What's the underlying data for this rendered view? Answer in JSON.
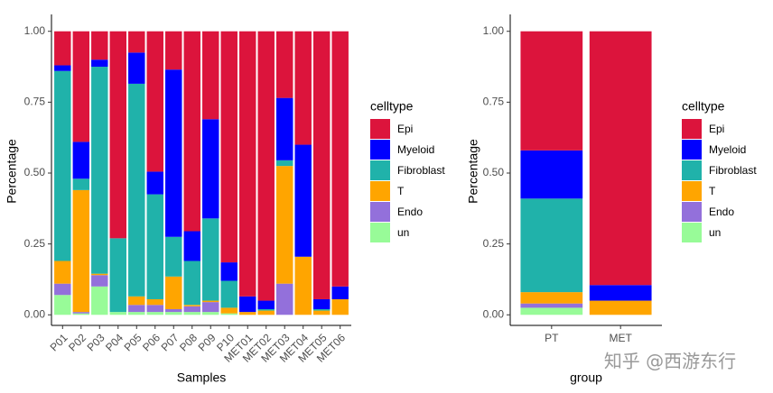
{
  "chart_data": [
    {
      "type": "stacked_bar",
      "xlabel": "Samples",
      "ylabel": "Percentage",
      "legend_title": "celltype",
      "categories": [
        "P01",
        "P02",
        "P03",
        "P04",
        "P05",
        "P06",
        "P07",
        "P08",
        "P09",
        "P10",
        "MET01",
        "MET02",
        "MET03",
        "MET04",
        "MET05",
        "MET06"
      ],
      "series": [
        {
          "name": "Epi",
          "color": "#DC143C",
          "values": [
            0.12,
            0.39,
            0.1,
            0.73,
            0.075,
            0.495,
            0.135,
            0.705,
            0.31,
            0.815,
            0.935,
            0.95,
            0.235,
            0.4,
            0.945,
            0.9
          ]
        },
        {
          "name": "Myeloid",
          "color": "#0000FF",
          "values": [
            0.02,
            0.13,
            0.025,
            0,
            0.11,
            0.08,
            0.59,
            0.105,
            0.35,
            0.065,
            0.055,
            0.03,
            0.22,
            0.395,
            0.035,
            0.045
          ]
        },
        {
          "name": "Fibroblast",
          "color": "#20B2AA",
          "values": [
            0.67,
            0.04,
            0.73,
            0.26,
            0.75,
            0.37,
            0.14,
            0.155,
            0.29,
            0.095,
            0,
            0.005,
            0.02,
            0,
            0.005,
            0
          ]
        },
        {
          "name": "T",
          "color": "#FFA500",
          "values": [
            0.08,
            0.43,
            0.005,
            0,
            0.03,
            0.02,
            0.115,
            0.005,
            0.005,
            0.02,
            0.01,
            0.015,
            0.415,
            0.205,
            0.015,
            0.055
          ]
        },
        {
          "name": "Endo",
          "color": "#9370DB",
          "values": [
            0.04,
            0.005,
            0.04,
            0,
            0.025,
            0.025,
            0.01,
            0.02,
            0.035,
            0,
            0,
            0,
            0.11,
            0,
            0,
            0
          ]
        },
        {
          "name": "un",
          "color": "#98FB98",
          "values": [
            0.07,
            0.005,
            0.1,
            0.01,
            0.01,
            0.01,
            0.01,
            0.01,
            0.01,
            0.005,
            0,
            0,
            0,
            0,
            0,
            0
          ]
        }
      ],
      "ylim": [
        -0.05,
        1.05
      ],
      "yticks": [
        {
          "value": 0,
          "label": "0.00"
        },
        {
          "value": 0.25,
          "label": "0.25"
        },
        {
          "value": 0.5,
          "label": "0.50"
        },
        {
          "value": 0.75,
          "label": "0.75"
        },
        {
          "value": 1,
          "label": "1.00"
        }
      ]
    },
    {
      "type": "stacked_bar",
      "xlabel": "group",
      "ylabel": "Percentage",
      "legend_title": "celltype",
      "categories": [
        "PT",
        "MET"
      ],
      "series": [
        {
          "name": "Epi",
          "color": "#DC143C",
          "values": [
            0.42,
            0.895
          ]
        },
        {
          "name": "Myeloid",
          "color": "#0000FF",
          "values": [
            0.17,
            0.055
          ]
        },
        {
          "name": "Fibroblast",
          "color": "#20B2AA",
          "values": [
            0.33,
            0
          ]
        },
        {
          "name": "T",
          "color": "#FFA500",
          "values": [
            0.04,
            0.05
          ]
        },
        {
          "name": "Endo",
          "color": "#9370DB",
          "values": [
            0.015,
            0
          ]
        },
        {
          "name": "un",
          "color": "#98FB98",
          "values": [
            0.025,
            0
          ]
        }
      ],
      "ylim": [
        -0.05,
        1.05
      ],
      "yticks": [
        {
          "value": 0,
          "label": "0.00"
        },
        {
          "value": 0.25,
          "label": "0.25"
        },
        {
          "value": 0.5,
          "label": "0.50"
        },
        {
          "value": 0.75,
          "label": "0.75"
        },
        {
          "value": 1,
          "label": "1.00"
        }
      ]
    }
  ],
  "watermark": "知乎 @西游东行"
}
